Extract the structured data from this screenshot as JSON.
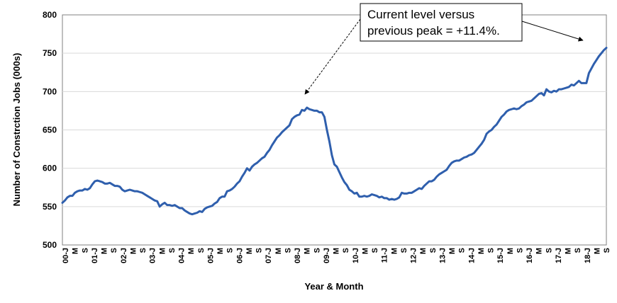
{
  "chart_data": {
    "type": "line",
    "title": "",
    "xlabel": "Year & Month",
    "ylabel": "Number of Constrction Jobs (000s)",
    "ylim": [
      500,
      800
    ],
    "yticks": [
      500,
      550,
      600,
      650,
      700,
      750,
      800
    ],
    "grid": "horizontal",
    "legend": "none",
    "line_color": "#2f5fad",
    "x_tick_labels": [
      "00-J",
      "M",
      "S",
      "01-J",
      "M",
      "S",
      "02-J",
      "M",
      "S",
      "03-J",
      "M",
      "S",
      "04-J",
      "M",
      "S",
      "05-J",
      "M",
      "S",
      "06-J",
      "M",
      "S",
      "07-J",
      "M",
      "S",
      "08-J",
      "M",
      "S",
      "09-J",
      "M",
      "S",
      "10-J",
      "M",
      "S",
      "11-J",
      "M",
      "S",
      "12-J",
      "M",
      "S",
      "13-J",
      "M",
      "S",
      "14-J",
      "M",
      "S",
      "15-J",
      "M",
      "S",
      "16-J",
      "M",
      "S",
      "17-J",
      "M",
      "S",
      "18-J",
      "M",
      "S"
    ],
    "annotation": {
      "line1": "Current level versus",
      "line2": "previous peak = +11.4%."
    },
    "series": [
      {
        "values": [
          555,
          558,
          562,
          564,
          564,
          568,
          570,
          571,
          571,
          573,
          572,
          574,
          579,
          583,
          584,
          583,
          582,
          580,
          580,
          581,
          579,
          577,
          577,
          576,
          572,
          570,
          571,
          572,
          571,
          570,
          570,
          569,
          568,
          566,
          564,
          562,
          560,
          558,
          557,
          550,
          553,
          555,
          552,
          552,
          551,
          552,
          550,
          548,
          548,
          545,
          543,
          541,
          540,
          541,
          542,
          544,
          543,
          547,
          549,
          550,
          551,
          554,
          556,
          561,
          563,
          563,
          570,
          571,
          573,
          576,
          580,
          583,
          589,
          594,
          600,
          597,
          602,
          605,
          607,
          610,
          613,
          615,
          620,
          624,
          630,
          635,
          640,
          643,
          647,
          650,
          653,
          656,
          664,
          667,
          669,
          670,
          676,
          675,
          679,
          677,
          676,
          675,
          675,
          673,
          673,
          667,
          650,
          635,
          617,
          605,
          602,
          595,
          588,
          582,
          578,
          572,
          570,
          567,
          568,
          563,
          563,
          564,
          563,
          564,
          566,
          565,
          564,
          562,
          563,
          561,
          561,
          559,
          560,
          559,
          560,
          562,
          568,
          567,
          567,
          568,
          568,
          570,
          572,
          574,
          573,
          577,
          580,
          583,
          583,
          585,
          589,
          592,
          594,
          596,
          598,
          603,
          607,
          609,
          610,
          610,
          612,
          614,
          615,
          617,
          618,
          620,
          624,
          628,
          632,
          637,
          645,
          648,
          650,
          654,
          657,
          662,
          667,
          670,
          674,
          676,
          677,
          678,
          677,
          678,
          681,
          683,
          686,
          687,
          688,
          691,
          694,
          697,
          698,
          695,
          703,
          700,
          699,
          701,
          700,
          703,
          703,
          704,
          705,
          706,
          709,
          708,
          711,
          714,
          711,
          711,
          711,
          724,
          730,
          736,
          741,
          746,
          750,
          754,
          757
        ]
      }
    ]
  }
}
